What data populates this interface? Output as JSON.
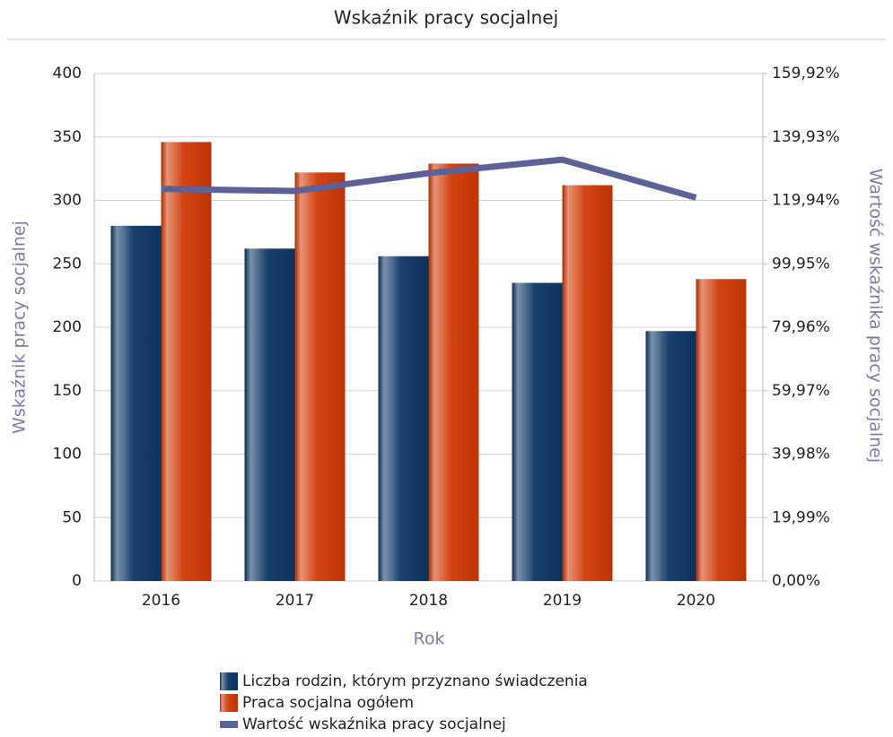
{
  "chart_data": {
    "type": "bar",
    "title": "Wskaźnik pracy socjalnej",
    "x_label": "Rok",
    "y_label": "Wskaźnik pracy socjalnej",
    "y2_label": "Wartość wskaźnika pracy socjalnej",
    "categories": [
      "2016",
      "2017",
      "2018",
      "2019",
      "2020"
    ],
    "series": [
      {
        "name": "Liczba rodzin, którym przyznano świadczenia",
        "type": "bar",
        "color": "#0d3766",
        "values": [
          280,
          262,
          256,
          235,
          197
        ]
      },
      {
        "name": "Praca socjalna ogółem",
        "type": "bar",
        "color": "#d13a06",
        "values": [
          346,
          322,
          329,
          312,
          238
        ]
      },
      {
        "name": "Wartość wskaźnika pracy socjalnej",
        "type": "line",
        "axis": "y2",
        "color": "#5d6196",
        "values": [
          123.57,
          122.9,
          128.52,
          132.77,
          120.81
        ]
      }
    ],
    "ylim": [
      0,
      400
    ],
    "yticks": [
      0,
      50,
      100,
      150,
      200,
      250,
      300,
      350,
      400
    ],
    "y2lim": [
      0,
      159.92
    ],
    "y2ticks": [
      {
        "value": 0,
        "label": "0,00%"
      },
      {
        "value": 19.99,
        "label": "19,99%"
      },
      {
        "value": 39.98,
        "label": "39,98%"
      },
      {
        "value": 59.97,
        "label": "59,97%"
      },
      {
        "value": 79.96,
        "label": "79,96%"
      },
      {
        "value": 99.95,
        "label": "99,95%"
      },
      {
        "value": 119.94,
        "label": "119,94%"
      },
      {
        "value": 139.93,
        "label": "139,93%"
      },
      {
        "value": 159.92,
        "label": "159,92%"
      }
    ],
    "grid": true
  }
}
